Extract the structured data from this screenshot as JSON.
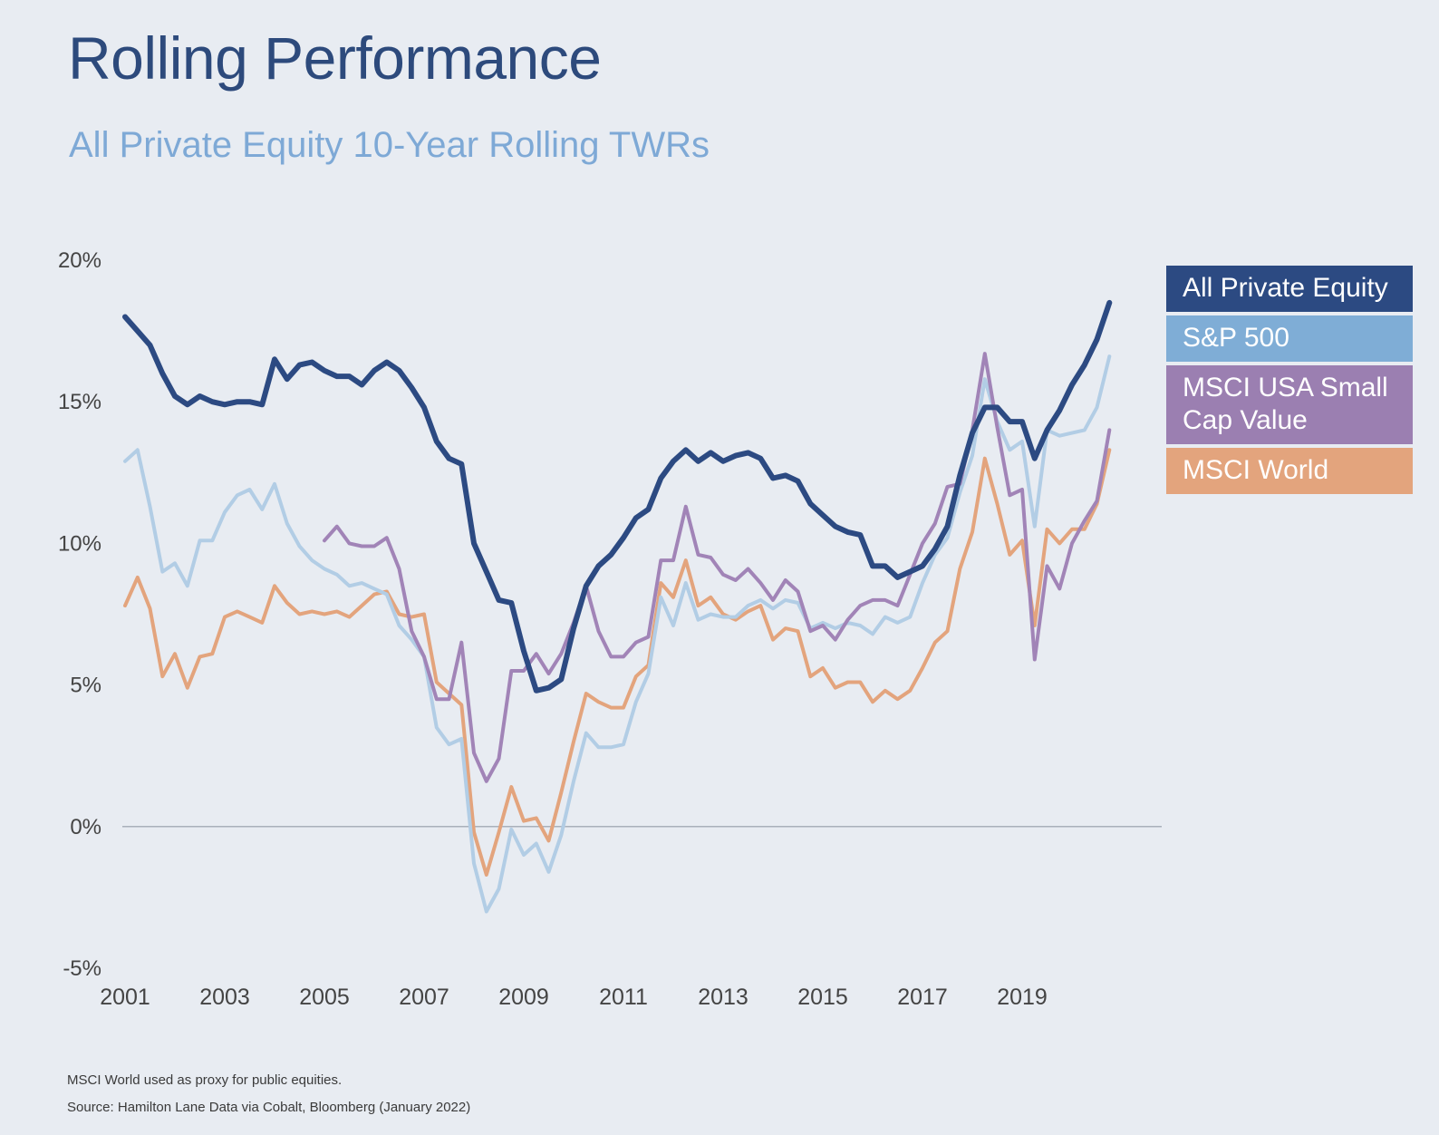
{
  "title": "Rolling Performance",
  "subtitle": "All Private Equity 10-Year Rolling TWRs",
  "footnotes": [
    "MSCI World used as proxy for public equities.",
    "Source: Hamilton Lane Data via Cobalt, Bloomberg (January 2022)"
  ],
  "colors": {
    "background": "#e8ecf2",
    "title": "#2d4a7c",
    "subtitle": "#7ea9d6",
    "zero_line": "#a9b0bb"
  },
  "chart_data": {
    "type": "line",
    "title": "",
    "xlabel": "",
    "ylabel": "",
    "xlim": [
      2001,
      2021
    ],
    "ylim": [
      -5,
      20
    ],
    "x_ticks": [
      2001,
      2003,
      2005,
      2007,
      2009,
      2011,
      2013,
      2015,
      2017,
      2019
    ],
    "x_tick_labels": [
      "2001",
      "2003",
      "2005",
      "2007",
      "2009",
      "2011",
      "2013",
      "2015",
      "2017",
      "2019"
    ],
    "y_ticks": [
      20,
      15,
      10,
      5,
      0,
      -5
    ],
    "y_tick_labels": [
      "20%",
      "15%",
      "10%",
      "5%",
      "0%",
      "-5%"
    ],
    "grid": false,
    "legend_position": "right",
    "series": [
      {
        "name": "MSCI World",
        "color": "#e3a47d",
        "width": 4,
        "x": [
          2001.0,
          2001.25,
          2001.5,
          2001.75,
          2002.0,
          2002.25,
          2002.5,
          2002.75,
          2003.0,
          2003.25,
          2003.5,
          2003.75,
          2004.0,
          2004.25,
          2004.5,
          2004.75,
          2005.0,
          2005.25,
          2005.5,
          2005.75,
          2006.0,
          2006.25,
          2006.5,
          2006.75,
          2007.0,
          2007.25,
          2007.5,
          2007.75,
          2008.0,
          2008.25,
          2008.5,
          2008.75,
          2009.0,
          2009.25,
          2009.5,
          2009.75,
          2010.0,
          2010.25,
          2010.5,
          2010.75,
          2011.0,
          2011.25,
          2011.5,
          2011.75,
          2012.0,
          2012.25,
          2012.5,
          2012.75,
          2013.0,
          2013.25,
          2013.5,
          2013.75,
          2014.0,
          2014.25,
          2014.5,
          2014.75,
          2015.0,
          2015.25,
          2015.5,
          2015.75,
          2016.0,
          2016.25,
          2016.5,
          2016.75,
          2017.0,
          2017.25,
          2017.5,
          2017.75,
          2018.0,
          2018.25,
          2018.5,
          2018.75,
          2019.0,
          2019.25,
          2019.5,
          2019.75,
          2020.0,
          2020.25,
          2020.5,
          2020.75
        ],
        "values": [
          7.8,
          8.8,
          7.7,
          5.3,
          6.1,
          4.9,
          6.0,
          6.1,
          7.4,
          7.6,
          7.4,
          7.2,
          8.5,
          7.9,
          7.5,
          7.6,
          7.5,
          7.6,
          7.4,
          7.8,
          8.2,
          8.3,
          7.5,
          7.4,
          7.5,
          5.1,
          4.7,
          4.3,
          -0.2,
          -1.7,
          -0.2,
          1.4,
          0.2,
          0.3,
          -0.5,
          1.2,
          3.0,
          4.7,
          4.4,
          4.2,
          4.2,
          5.3,
          5.7,
          8.6,
          8.1,
          9.4,
          7.8,
          8.1,
          7.5,
          7.3,
          7.6,
          7.8,
          6.6,
          7.0,
          6.9,
          5.3,
          5.6,
          4.9,
          5.1,
          5.1,
          4.4,
          4.8,
          4.5,
          4.8,
          5.6,
          6.5,
          6.9,
          9.1,
          10.4,
          13.0,
          11.4,
          9.6,
          10.1,
          7.1,
          10.5,
          10.0,
          10.5,
          10.5,
          11.4,
          13.3
        ]
      },
      {
        "name": "S&P 500",
        "color": "#b2cde5",
        "width": 4,
        "x": [
          2001.0,
          2001.25,
          2001.5,
          2001.75,
          2002.0,
          2002.25,
          2002.5,
          2002.75,
          2003.0,
          2003.25,
          2003.5,
          2003.75,
          2004.0,
          2004.25,
          2004.5,
          2004.75,
          2005.0,
          2005.25,
          2005.5,
          2005.75,
          2006.0,
          2006.25,
          2006.5,
          2006.75,
          2007.0,
          2007.25,
          2007.5,
          2007.75,
          2008.0,
          2008.25,
          2008.5,
          2008.75,
          2009.0,
          2009.25,
          2009.5,
          2009.75,
          2010.0,
          2010.25,
          2010.5,
          2010.75,
          2011.0,
          2011.25,
          2011.5,
          2011.75,
          2012.0,
          2012.25,
          2012.5,
          2012.75,
          2013.0,
          2013.25,
          2013.5,
          2013.75,
          2014.0,
          2014.25,
          2014.5,
          2014.75,
          2015.0,
          2015.25,
          2015.5,
          2015.75,
          2016.0,
          2016.25,
          2016.5,
          2016.75,
          2017.0,
          2017.25,
          2017.5,
          2017.75,
          2018.0,
          2018.25,
          2018.5,
          2018.75,
          2019.0,
          2019.25,
          2019.5,
          2019.75,
          2020.0,
          2020.25,
          2020.5,
          2020.75
        ],
        "values": [
          12.9,
          13.3,
          11.3,
          9.0,
          9.3,
          8.5,
          10.1,
          10.1,
          11.1,
          11.7,
          11.9,
          11.2,
          12.1,
          10.7,
          9.9,
          9.4,
          9.1,
          8.9,
          8.5,
          8.6,
          8.4,
          8.2,
          7.1,
          6.6,
          6.0,
          3.5,
          2.9,
          3.1,
          -1.3,
          -3.0,
          -2.2,
          -0.1,
          -1.0,
          -0.6,
          -1.6,
          -0.3,
          1.6,
          3.3,
          2.8,
          2.8,
          2.9,
          4.4,
          5.4,
          8.1,
          7.1,
          8.6,
          7.3,
          7.5,
          7.4,
          7.4,
          7.8,
          8.0,
          7.7,
          8.0,
          7.9,
          7.0,
          7.2,
          7.0,
          7.2,
          7.1,
          6.8,
          7.4,
          7.2,
          7.4,
          8.6,
          9.6,
          10.2,
          11.8,
          13.1,
          15.8,
          14.3,
          13.3,
          13.6,
          10.6,
          14.0,
          13.8,
          13.9,
          14.0,
          14.8,
          16.6
        ]
      },
      {
        "name": "MSCI USA Small Cap Value",
        "color": "#a184b7",
        "width": 4,
        "x": [
          2005.0,
          2005.25,
          2005.5,
          2005.75,
          2006.0,
          2006.25,
          2006.5,
          2006.75,
          2007.0,
          2007.25,
          2007.5,
          2007.75,
          2008.0,
          2008.25,
          2008.5,
          2008.75,
          2009.0,
          2009.25,
          2009.5,
          2009.75,
          2010.0,
          2010.25,
          2010.5,
          2010.75,
          2011.0,
          2011.25,
          2011.5,
          2011.75,
          2012.0,
          2012.25,
          2012.5,
          2012.75,
          2013.0,
          2013.25,
          2013.5,
          2013.75,
          2014.0,
          2014.25,
          2014.5,
          2014.75,
          2015.0,
          2015.25,
          2015.5,
          2015.75,
          2016.0,
          2016.25,
          2016.5,
          2016.75,
          2017.0,
          2017.25,
          2017.5,
          2017.75,
          2018.0,
          2018.25,
          2018.5,
          2018.75,
          2019.0,
          2019.25,
          2019.5,
          2019.75,
          2020.0,
          2020.25,
          2020.5,
          2020.75
        ],
        "values": [
          10.1,
          10.6,
          10.0,
          9.9,
          9.9,
          10.2,
          9.1,
          6.9,
          6.0,
          4.5,
          4.5,
          6.5,
          2.6,
          1.6,
          2.4,
          5.5,
          5.5,
          6.1,
          5.4,
          6.1,
          7.2,
          8.5,
          6.9,
          6.0,
          6.0,
          6.5,
          6.7,
          9.4,
          9.4,
          11.3,
          9.6,
          9.5,
          8.9,
          8.7,
          9.1,
          8.6,
          8.0,
          8.7,
          8.3,
          6.9,
          7.1,
          6.6,
          7.3,
          7.8,
          8.0,
          8.0,
          7.8,
          8.9,
          10.0,
          10.7,
          12.0,
          12.1,
          14.0,
          16.7,
          14.1,
          11.7,
          11.9,
          5.9,
          9.2,
          8.4,
          10.0,
          10.8,
          11.5,
          14.0
        ]
      },
      {
        "name": "All Private Equity",
        "color": "#2c4a82",
        "width": 6,
        "x": [
          2001.0,
          2001.25,
          2001.5,
          2001.75,
          2002.0,
          2002.25,
          2002.5,
          2002.75,
          2003.0,
          2003.25,
          2003.5,
          2003.75,
          2004.0,
          2004.25,
          2004.5,
          2004.75,
          2005.0,
          2005.25,
          2005.5,
          2005.75,
          2006.0,
          2006.25,
          2006.5,
          2006.75,
          2007.0,
          2007.25,
          2007.5,
          2007.75,
          2008.0,
          2008.25,
          2008.5,
          2008.75,
          2009.0,
          2009.25,
          2009.5,
          2009.75,
          2010.0,
          2010.25,
          2010.5,
          2010.75,
          2011.0,
          2011.25,
          2011.5,
          2011.75,
          2012.0,
          2012.25,
          2012.5,
          2012.75,
          2013.0,
          2013.25,
          2013.5,
          2013.75,
          2014.0,
          2014.25,
          2014.5,
          2014.75,
          2015.0,
          2015.25,
          2015.5,
          2015.75,
          2016.0,
          2016.25,
          2016.5,
          2016.75,
          2017.0,
          2017.25,
          2017.5,
          2017.75,
          2018.0,
          2018.25,
          2018.5,
          2018.75,
          2019.0,
          2019.25,
          2019.5,
          2019.75,
          2020.0,
          2020.25,
          2020.5,
          2020.75
        ],
        "values": [
          18.0,
          17.5,
          17.0,
          16.0,
          15.2,
          14.9,
          15.2,
          15.0,
          14.9,
          15.0,
          15.0,
          14.9,
          16.5,
          15.8,
          16.3,
          16.4,
          16.1,
          15.9,
          15.9,
          15.6,
          16.1,
          16.4,
          16.1,
          15.5,
          14.8,
          13.6,
          13.0,
          12.8,
          10.0,
          9.0,
          8.0,
          7.9,
          6.2,
          4.8,
          4.9,
          5.2,
          7.0,
          8.5,
          9.2,
          9.6,
          10.2,
          10.9,
          11.2,
          12.3,
          12.9,
          13.3,
          12.9,
          13.2,
          12.9,
          13.1,
          13.2,
          13.0,
          12.3,
          12.4,
          12.2,
          11.4,
          11.0,
          10.6,
          10.4,
          10.3,
          9.2,
          9.2,
          8.8,
          9.0,
          9.2,
          9.8,
          10.6,
          12.4,
          13.9,
          14.8,
          14.8,
          14.3,
          14.3,
          13.0,
          14.0,
          14.7,
          15.6,
          16.3,
          17.2,
          18.5
        ]
      }
    ]
  },
  "legend": [
    {
      "label": "All Private Equity",
      "color": "#2c4a82"
    },
    {
      "label": "S&P 500",
      "color": "#7fadd6"
    },
    {
      "label": "MSCI USA Small Cap Value",
      "color": "#9b7fb1"
    },
    {
      "label": "MSCI World",
      "color": "#e3a47d"
    }
  ]
}
